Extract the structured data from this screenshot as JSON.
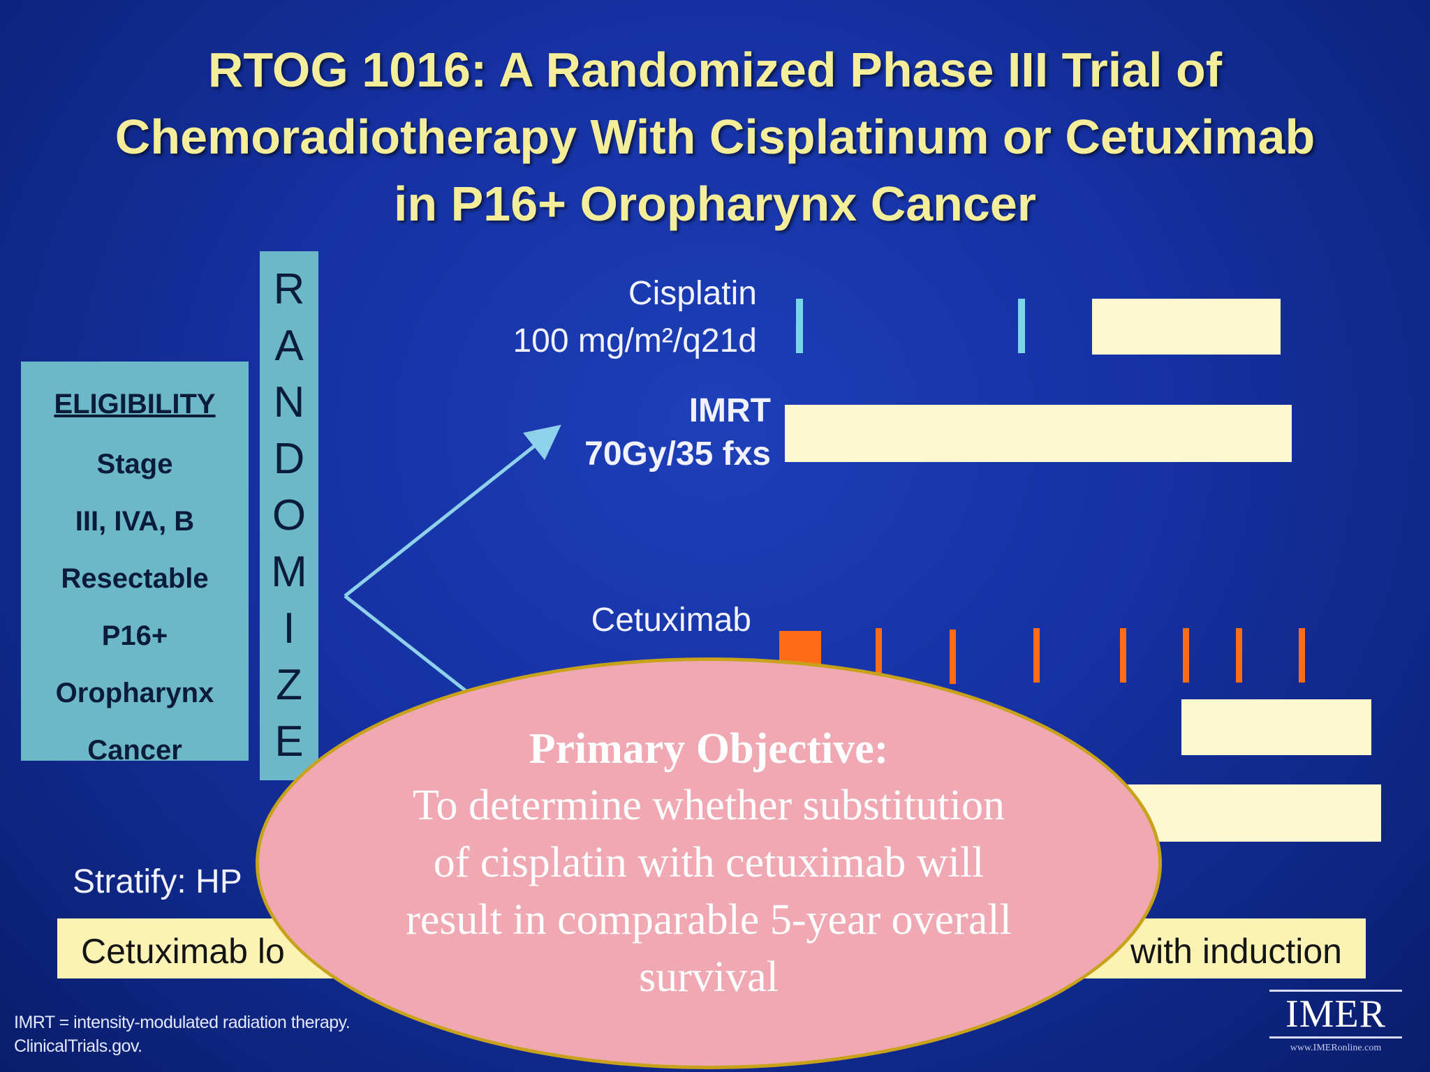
{
  "title": {
    "line1": "RTOG 1016: A Randomized Phase III Trial of",
    "line2": "Chemoradiotherapy With Cisplatinum or Cetuximab",
    "line3": "in P16+ Oropharynx Cancer"
  },
  "eligibility": {
    "heading": "ELIGIBILITY",
    "lines": [
      "Stage",
      "III, IVA, B",
      "Resectable",
      "P16+",
      "Oropharynx",
      "Cancer"
    ]
  },
  "randomize": {
    "letters": [
      "R",
      "A",
      "N",
      "D",
      "O",
      "M",
      "I",
      "Z",
      "E"
    ]
  },
  "arms": {
    "cisplatin_label_1": "Cisplatin",
    "cisplatin_label_2": "100 mg/m²/q21d",
    "imrt_label_1": "IMRT",
    "imrt_label_2": "70Gy/35 fxs",
    "cetuximab_label_1": "Cetuximab"
  },
  "stratify_text": "Stratify: HP",
  "bottom_strip": {
    "left_text": "Cetuximab lo",
    "right_text": "with induction"
  },
  "footnote": {
    "line1": "IMRT = intensity-modulated radiation therapy.",
    "line2": "ClinicalTrials.gov."
  },
  "logo": {
    "text": "IMER",
    "url": "www.IMERonline.com"
  },
  "objective": {
    "heading": "Primary Objective:",
    "body": "To determine whether substitution of cisplatin with cetuximab will result in comparable 5-year overall survival"
  },
  "colors": {
    "background": "#1531a2",
    "title": "#f4ee9a",
    "box": "#6cb8c8",
    "bar": "#fdf8d0",
    "cisplatin_tick": "#79d6e6",
    "cetuximab_tick": "#ff6c18",
    "objective_fill": "#f0a8b3",
    "objective_border": "#c9a21c"
  }
}
